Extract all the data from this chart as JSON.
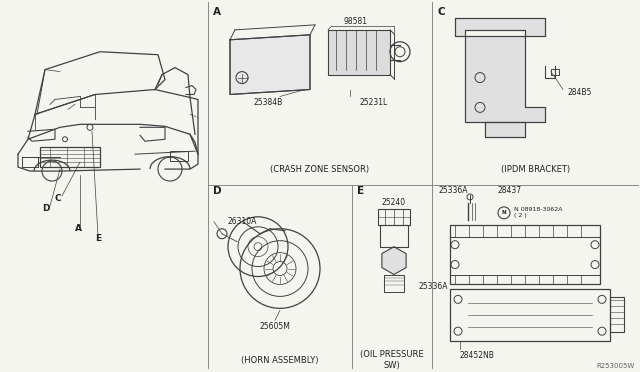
{
  "background_color": "#f5f5f0",
  "line_color": "#404040",
  "text_color": "#202020",
  "fig_width": 6.4,
  "fig_height": 3.72,
  "dpi": 100,
  "div_color": "#888888",
  "labels": {
    "sec_A": "A",
    "sec_C": "C",
    "sec_D": "D",
    "sec_E": "E",
    "crash_zone": "(CRASH ZONE SENSOR)",
    "ipdm_bracket": "(IPDM BRACKET)",
    "horn_assembly": "(HORN ASSEMBLY)",
    "oil_pressure": "(OIL PRESSURE\nSW)",
    "p98581": "98581",
    "p25384B": "25384B",
    "p25231L": "25231L",
    "p284B5": "284B5",
    "p26310A": "26310A",
    "p25605M": "25605M",
    "p25240": "25240",
    "p25336A_t": "25336A",
    "p28437": "28437",
    "p08918": "N 08918-3062A\n( 2 )",
    "p25336A_m": "25336A",
    "p28452NB": "28452NB",
    "ref": "R253005W",
    "lA": "A",
    "lC": "C",
    "lD": "D",
    "lE": "E"
  },
  "font_size_part": 5.5,
  "font_size_sec": 7.5,
  "font_size_cap": 6.0,
  "font_size_ref": 5.0,
  "divx1": 208,
  "divx2": 432,
  "divy_mid": 186,
  "divx_de": 352
}
